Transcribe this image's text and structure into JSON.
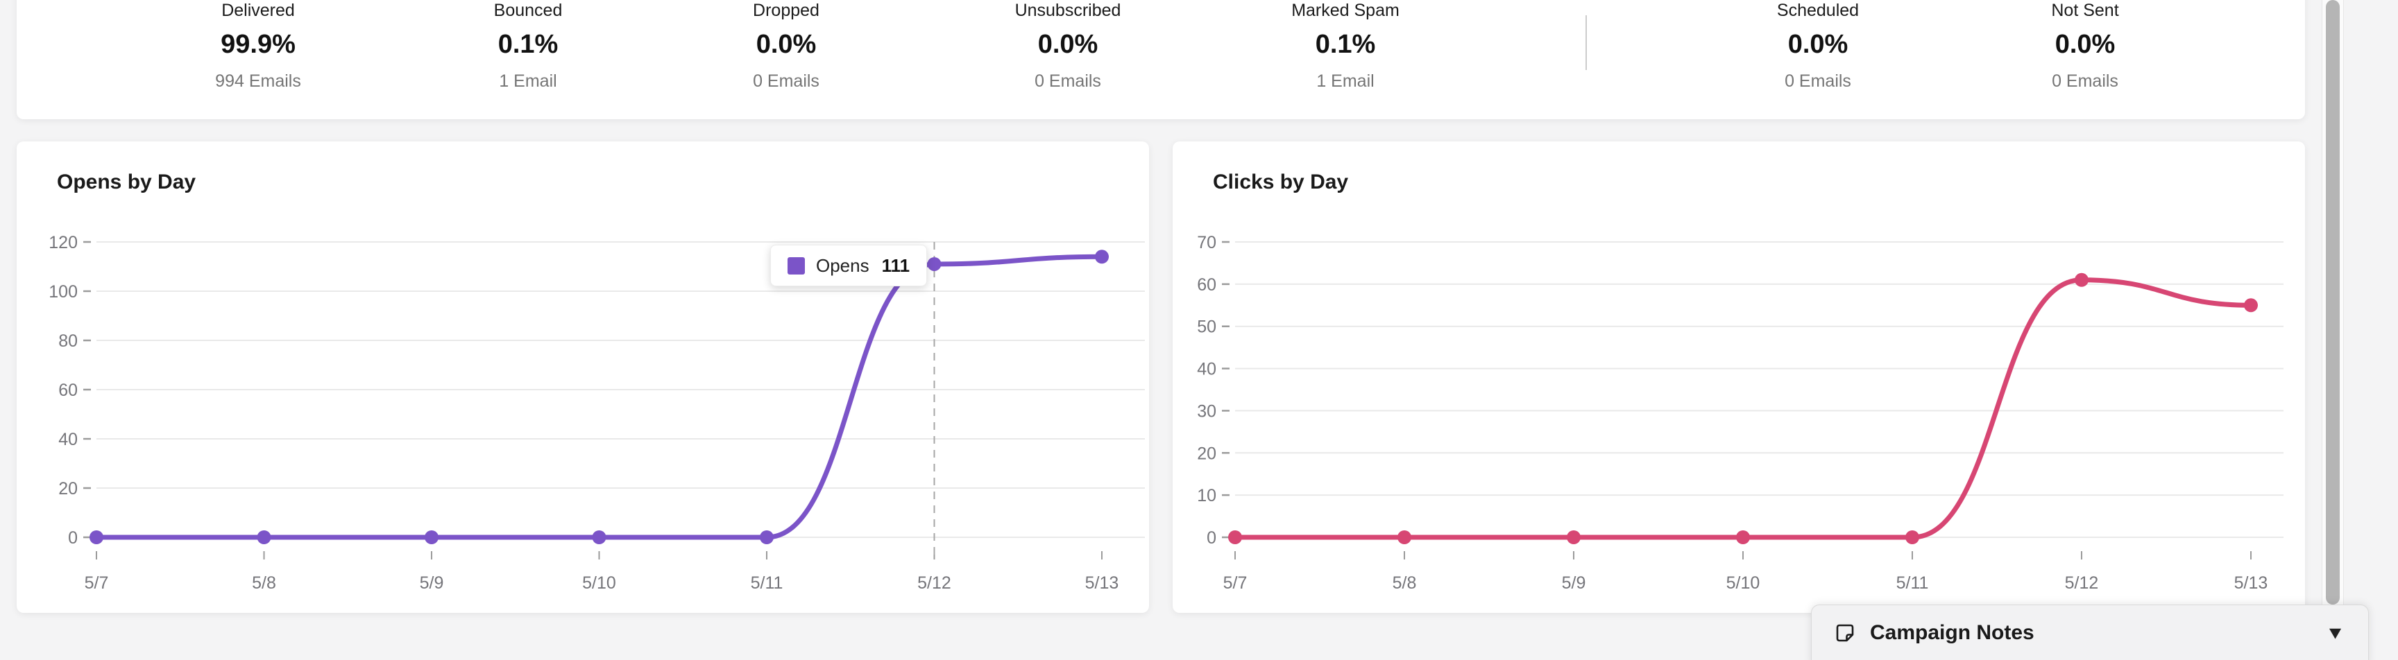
{
  "stats_card": {
    "stats": [
      {
        "label": "Delivered",
        "percent": "99.9%",
        "sublabel": "994 Emails"
      },
      {
        "label": "Bounced",
        "percent": "0.1%",
        "sublabel": "1 Email"
      },
      {
        "label": "Dropped",
        "percent": "0.0%",
        "sublabel": "0 Emails"
      },
      {
        "label": "Unsubscribed",
        "percent": "0.0%",
        "sublabel": "0 Emails"
      },
      {
        "label": "Marked Spam",
        "percent": "0.1%",
        "sublabel": "1 Email"
      },
      {
        "label": "Scheduled",
        "percent": "0.0%",
        "sublabel": "0 Emails"
      },
      {
        "label": "Not Sent",
        "percent": "0.0%",
        "sublabel": "0 Emails"
      }
    ]
  },
  "chart_data": [
    {
      "type": "line",
      "title": "Opens by Day",
      "categories": [
        "5/7",
        "5/8",
        "5/9",
        "5/10",
        "5/11",
        "5/12",
        "5/13"
      ],
      "series": [
        {
          "name": "Opens",
          "color": "#7b54c8",
          "values": [
            0,
            0,
            0,
            0,
            0,
            111,
            114
          ]
        }
      ],
      "ylim": [
        0,
        120
      ],
      "yticks": [
        120,
        100,
        80,
        60,
        40,
        20,
        0
      ],
      "grid": true,
      "legend_position": "none",
      "hover": {
        "category": "5/12",
        "index": 5,
        "label": "Opens",
        "value": "111"
      }
    },
    {
      "type": "line",
      "title": "Clicks by Day",
      "categories": [
        "5/7",
        "5/8",
        "5/9",
        "5/10",
        "5/11",
        "5/12",
        "5/13"
      ],
      "series": [
        {
          "name": "Clicks",
          "color": "#d74673",
          "values": [
            0,
            0,
            0,
            0,
            0,
            61,
            55
          ]
        }
      ],
      "ylim": [
        0,
        70
      ],
      "yticks": [
        70,
        60,
        50,
        40,
        30,
        20,
        10,
        0
      ],
      "grid": true,
      "legend_position": "none"
    }
  ],
  "notes_panel": {
    "title": "Campaign Notes",
    "icon": "note-icon",
    "caret_icon": "caret-down-icon",
    "caret_glyph": "▾"
  },
  "colors": {
    "opens_line": "#7b54c8",
    "clicks_line": "#d74673",
    "grid_line": "#e9e9e9",
    "axis_text": "#75757a",
    "divider": "#cccccc",
    "scrollbar_thumb": "#b5b5b5"
  }
}
